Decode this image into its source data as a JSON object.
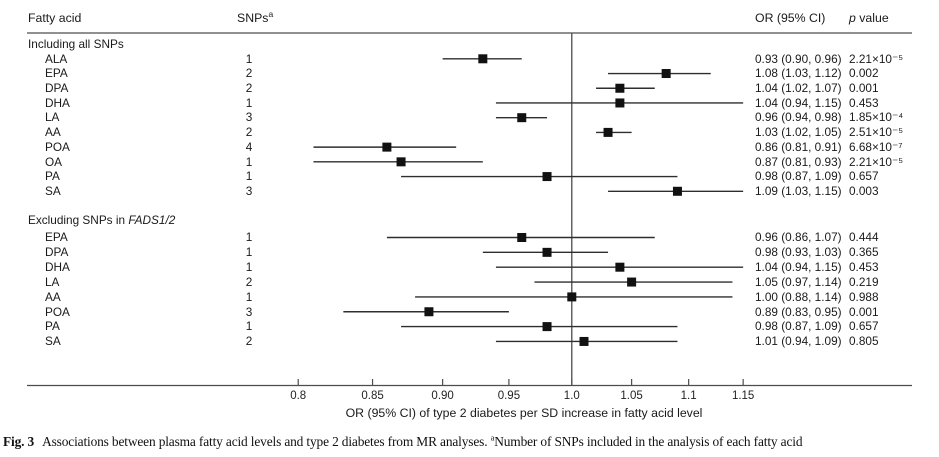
{
  "columns": {
    "fatty_acid": "Fatty acid",
    "snps": "SNPs",
    "snps_sup": "a",
    "or": "OR (95% CI)",
    "p_em": "p",
    "p_rest": " value"
  },
  "chart_data": {
    "type": "scatter",
    "subtype": "forest-plot",
    "x_scale": "log",
    "xlabel": "OR (95% CI) of type 2 diabetes per SD increase in fatty acid level",
    "reference_line_x": 1.0,
    "x_ticks": [
      {
        "v": 0.8,
        "label": "0.8"
      },
      {
        "v": 0.85,
        "label": "0.85"
      },
      {
        "v": 0.9,
        "label": "0.90"
      },
      {
        "v": 0.95,
        "label": "0.95"
      },
      {
        "v": 1.0,
        "label": "1.0"
      },
      {
        "v": 1.05,
        "label": "1.05"
      },
      {
        "v": 1.1,
        "label": "1.1"
      },
      {
        "v": 1.15,
        "label": "1.15"
      }
    ],
    "sections": [
      {
        "title": "Including all SNPs",
        "title_italic": "",
        "rows": [
          {
            "name": "ALA",
            "snps": "1",
            "or": 0.93,
            "lo": 0.9,
            "hi": 0.96,
            "or_text": "0.93 (0.90, 0.96)",
            "p": "2.21×10⁻⁵"
          },
          {
            "name": "EPA",
            "snps": "2",
            "or": 1.08,
            "lo": 1.03,
            "hi": 1.12,
            "or_text": "1.08 (1.03, 1.12)",
            "p": "0.002"
          },
          {
            "name": "DPA",
            "snps": "2",
            "or": 1.04,
            "lo": 1.02,
            "hi": 1.07,
            "or_text": "1.04 (1.02, 1.07)",
            "p": "0.001"
          },
          {
            "name": "DHA",
            "snps": "1",
            "or": 1.04,
            "lo": 0.94,
            "hi": 1.15,
            "or_text": "1.04 (0.94, 1.15)",
            "p": "0.453"
          },
          {
            "name": "LA",
            "snps": "3",
            "or": 0.96,
            "lo": 0.94,
            "hi": 0.98,
            "or_text": "0.96 (0.94, 0.98)",
            "p": "1.85×10⁻⁴"
          },
          {
            "name": "AA",
            "snps": "2",
            "or": 1.03,
            "lo": 1.02,
            "hi": 1.05,
            "or_text": "1.03 (1.02, 1.05)",
            "p": "2.51×10⁻⁵"
          },
          {
            "name": "POA",
            "snps": "4",
            "or": 0.86,
            "lo": 0.81,
            "hi": 0.91,
            "or_text": "0.86 (0.81, 0.91)",
            "p": "6.68×10⁻⁷"
          },
          {
            "name": "OA",
            "snps": "1",
            "or": 0.87,
            "lo": 0.81,
            "hi": 0.93,
            "or_text": "0.87 (0.81, 0.93)",
            "p": "2.21×10⁻⁵"
          },
          {
            "name": "PA",
            "snps": "1",
            "or": 0.98,
            "lo": 0.87,
            "hi": 1.09,
            "or_text": "0.98 (0.87, 1.09)",
            "p": "0.657"
          },
          {
            "name": "SA",
            "snps": "3",
            "or": 1.09,
            "lo": 1.03,
            "hi": 1.15,
            "or_text": "1.09 (1.03, 1.15)",
            "p": "0.003"
          }
        ]
      },
      {
        "title": "Excluding SNPs in ",
        "title_italic": "FADS1/2",
        "rows": [
          {
            "name": "EPA",
            "snps": "1",
            "or": 0.96,
            "lo": 0.86,
            "hi": 1.07,
            "or_text": "0.96 (0.86, 1.07)",
            "p": "0.444"
          },
          {
            "name": "DPA",
            "snps": "1",
            "or": 0.98,
            "lo": 0.93,
            "hi": 1.03,
            "or_text": "0.98 (0.93, 1.03)",
            "p": "0.365"
          },
          {
            "name": "DHA",
            "snps": "1",
            "or": 1.04,
            "lo": 0.94,
            "hi": 1.15,
            "or_text": "1.04 (0.94, 1.15)",
            "p": "0.453"
          },
          {
            "name": "LA",
            "snps": "2",
            "or": 1.05,
            "lo": 0.97,
            "hi": 1.14,
            "or_text": "1.05 (0.97, 1.14)",
            "p": "0.219"
          },
          {
            "name": "AA",
            "snps": "1",
            "or": 1.0,
            "lo": 0.88,
            "hi": 1.14,
            "or_text": "1.00 (0.88, 1.14)",
            "p": "0.988"
          },
          {
            "name": "POA",
            "snps": "3",
            "or": 0.89,
            "lo": 0.83,
            "hi": 0.95,
            "or_text": "0.89 (0.83, 0.95)",
            "p": "0.001"
          },
          {
            "name": "PA",
            "snps": "1",
            "or": 0.98,
            "lo": 0.87,
            "hi": 1.09,
            "or_text": "0.98 (0.87, 1.09)",
            "p": "0.657"
          },
          {
            "name": "SA",
            "snps": "2",
            "or": 1.01,
            "lo": 0.94,
            "hi": 1.09,
            "or_text": "1.01 (0.94, 1.09)",
            "p": "0.805"
          }
        ]
      }
    ],
    "colors": {
      "marker": "#111111",
      "ci_line": "#2e2e2e",
      "rule_line": "#4d4d4d",
      "reference_line": "#3c3c3c",
      "text": "#1a1a1a"
    }
  },
  "caption": {
    "fig": "Fig. 3",
    "text1": "Associations between plasma fatty acid levels and type 2 diabetes from MR analyses. ",
    "sup": "a",
    "text2": "Number of SNPs included in the analysis of each fatty acid"
  }
}
